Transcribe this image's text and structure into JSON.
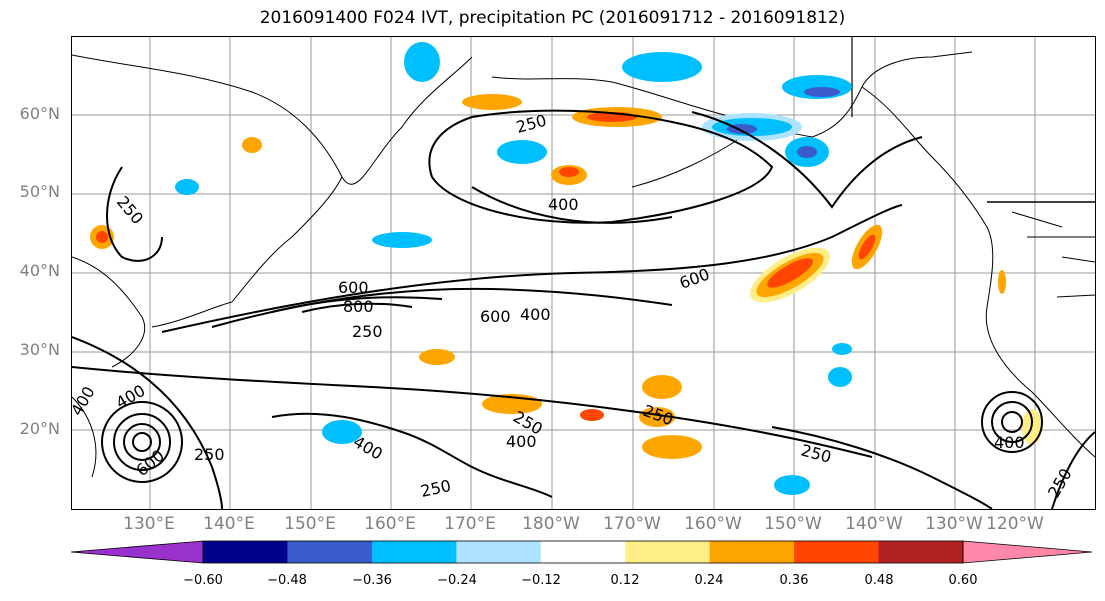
{
  "title": "2016091400 F024 IVT, precipitation PC (2016091712 - 2016091812)",
  "lat_labels": [
    "60°N",
    "50°N",
    "40°N",
    "30°N",
    "20°N"
  ],
  "lon_labels": [
    "130°E",
    "140°E",
    "150°E",
    "160°E",
    "170°E",
    "180°W",
    "170°W",
    "160°W",
    "150°W",
    "140°W",
    "130°W",
    "120°W"
  ],
  "colorbar": {
    "colors": [
      "#9932cc",
      "#00008b",
      "#3a5bcb",
      "#00bfff",
      "#aee3ff",
      "#ffffff",
      "#ffee88",
      "#ffa500",
      "#ff4500",
      "#b22222",
      "#ff88aa"
    ],
    "ticks": [
      "−0.60",
      "−0.48",
      "−0.36",
      "−0.24",
      "−0.12",
      "0.12",
      "0.24",
      "0.36",
      "0.48",
      "0.60"
    ]
  },
  "contour_labels": [
    "250",
    "400",
    "600",
    "800",
    "250",
    "600",
    "400",
    "600",
    "400",
    "250",
    "250",
    "400",
    "250",
    "400",
    "400",
    "600",
    "250",
    "250",
    "250",
    "250",
    "400",
    "250",
    "250"
  ]
}
